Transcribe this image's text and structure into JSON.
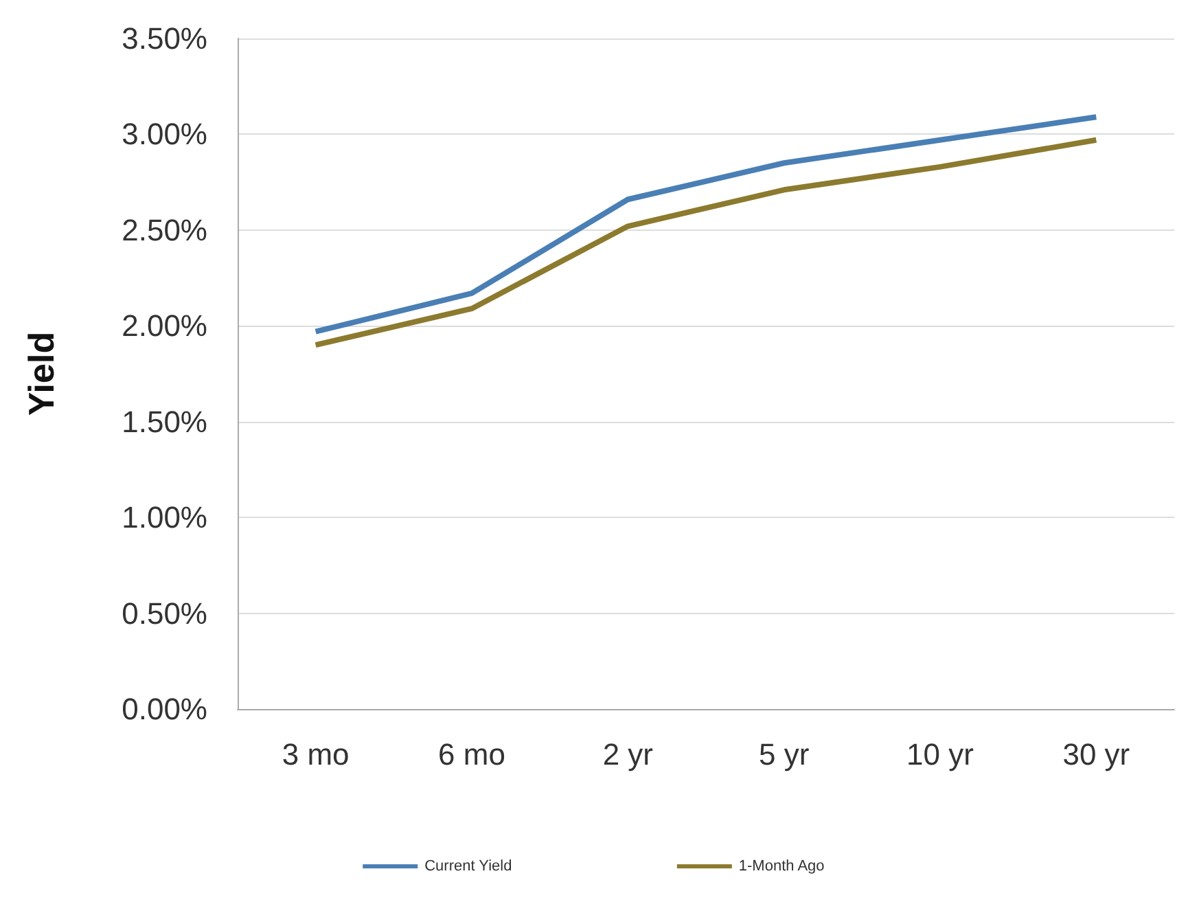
{
  "chart_data": {
    "type": "line",
    "ylabel": "Yield",
    "categories": [
      "3 mo",
      "6 mo",
      "2 yr",
      "5 yr",
      "10 yr",
      "30 yr"
    ],
    "series": [
      {
        "name": "Current Yield",
        "color": "#4a7fb5",
        "values": [
          1.97,
          2.17,
          2.66,
          2.85,
          2.97,
          3.09
        ]
      },
      {
        "name": "1-Month Ago",
        "color": "#8c7a2e",
        "values": [
          1.9,
          2.09,
          2.52,
          2.71,
          2.83,
          2.97
        ]
      }
    ],
    "ylim": [
      0,
      3.5
    ],
    "yticks": [
      {
        "value": 0,
        "label": "0.00%"
      },
      {
        "value": 0.5,
        "label": "0.50%"
      },
      {
        "value": 1,
        "label": "1.00%"
      },
      {
        "value": 1.5,
        "label": "1.50%"
      },
      {
        "value": 2,
        "label": "2.00%"
      },
      {
        "value": 2.5,
        "label": "2.50%"
      },
      {
        "value": 3,
        "label": "3.00%"
      },
      {
        "value": 3.5,
        "label": "3.50%"
      }
    ],
    "grid": "y",
    "legend": "bottom",
    "marker": "none",
    "line_style": "solid"
  }
}
